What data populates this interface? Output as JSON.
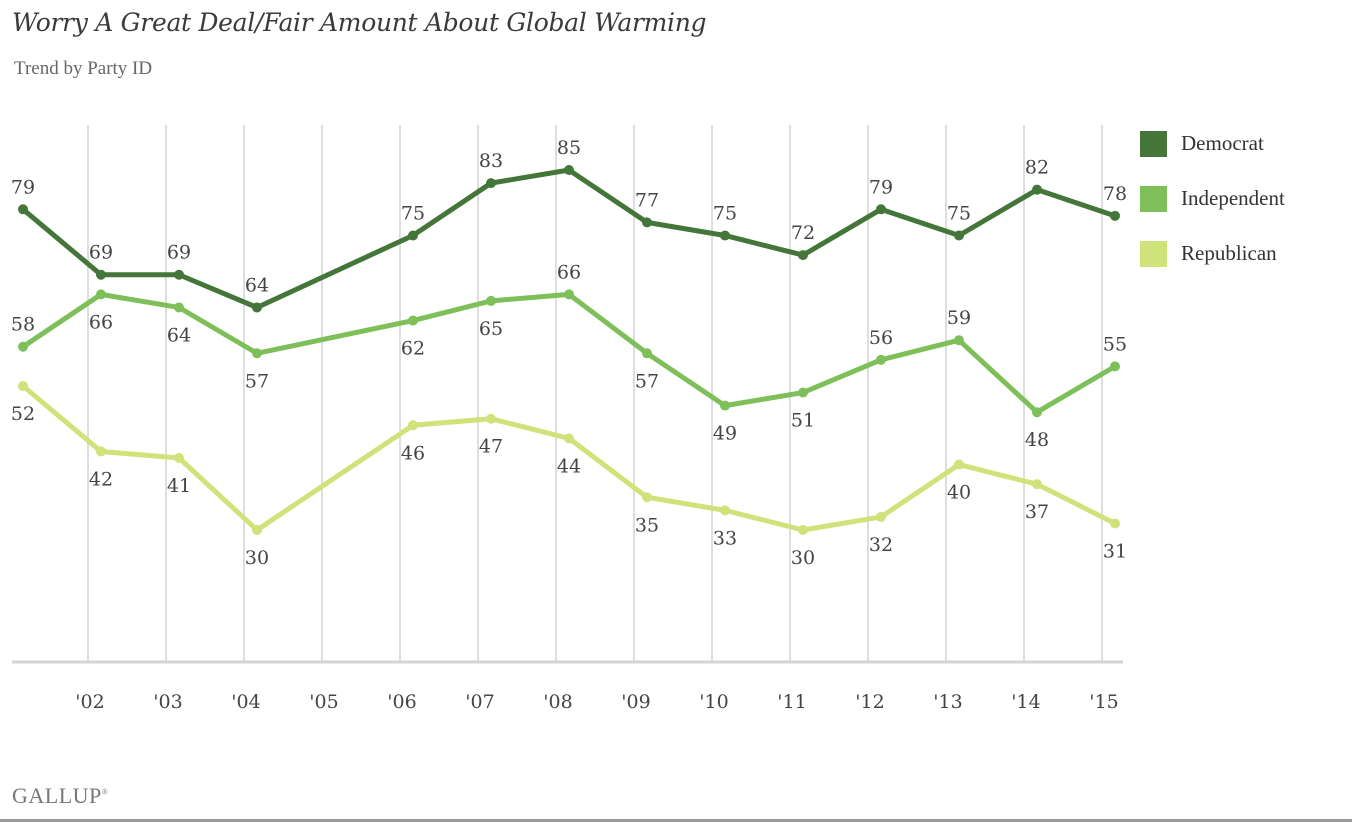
{
  "header": {
    "title": "Worry A Great Deal/Fair Amount About Global Warming",
    "subtitle": "Trend by Party ID"
  },
  "brand": {
    "name": "GALLUP",
    "mark": "®"
  },
  "chart_data": {
    "type": "line",
    "title": "Worry A Great Deal/Fair Amount About Global Warming",
    "subtitle": "Trend by Party ID",
    "xlabel": "",
    "ylabel": "",
    "x": [
      2001,
      2002,
      2003,
      2004,
      2006,
      2007,
      2008,
      2009,
      2010,
      2011,
      2012,
      2013,
      2014,
      2015
    ],
    "tick_years": [
      2002,
      2003,
      2004,
      2005,
      2006,
      2007,
      2008,
      2009,
      2010,
      2011,
      2012,
      2013,
      2014,
      2015
    ],
    "tick_labels": [
      "'02",
      "'03",
      "'04",
      "'05",
      "'06",
      "'07",
      "'08",
      "'09",
      "'10",
      "'11",
      "'12",
      "'13",
      "'14",
      "'15"
    ],
    "grid": "vertical",
    "legend_position": "right",
    "series": [
      {
        "name": "Democrat",
        "color": "#44763a",
        "values": [
          79,
          69,
          69,
          64,
          75,
          83,
          85,
          77,
          75,
          72,
          79,
          75,
          82,
          78
        ]
      },
      {
        "name": "Independent",
        "color": "#7fbf5a",
        "values": [
          58,
          66,
          64,
          57,
          62,
          65,
          66,
          57,
          49,
          51,
          56,
          59,
          48,
          55
        ]
      },
      {
        "name": "Republican",
        "color": "#cfe37a",
        "values": [
          52,
          42,
          41,
          30,
          46,
          47,
          44,
          35,
          33,
          30,
          32,
          40,
          37,
          31
        ]
      }
    ]
  },
  "colors": {
    "gridline": "#d4d4d4",
    "axis": "#d4d4d4",
    "text": "#444444"
  }
}
